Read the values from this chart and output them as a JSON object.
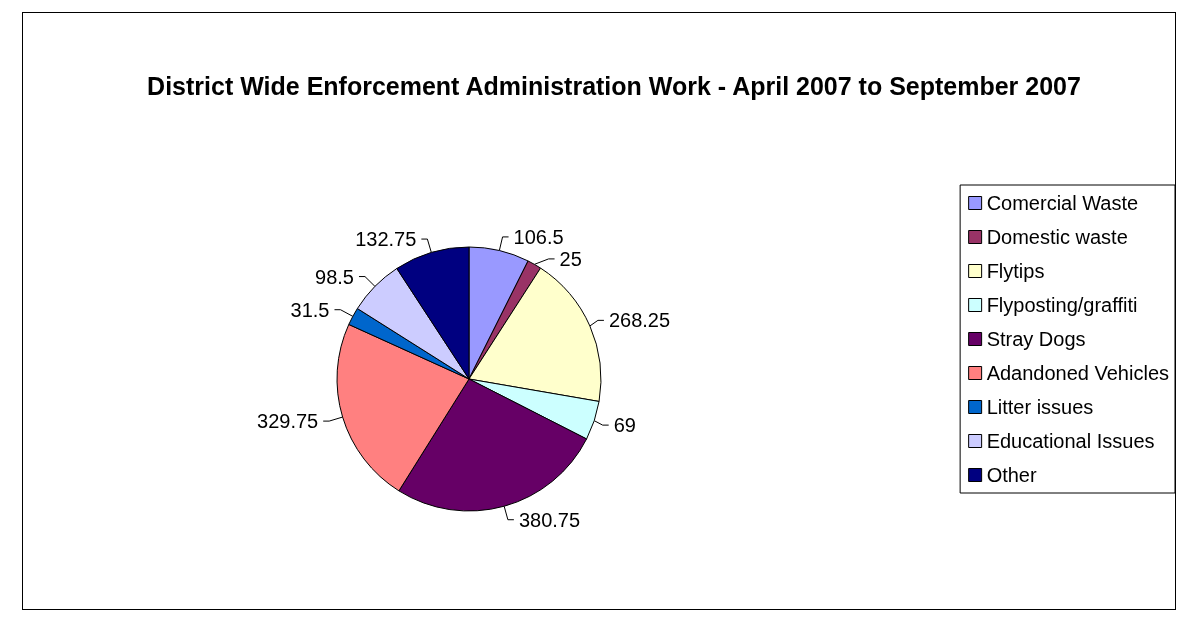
{
  "chart_data": {
    "type": "pie",
    "title": "District Wide Enforcement Administration Work - April 2007 to September 2007",
    "categories": [
      "Comercial Waste",
      "Domestic waste",
      "Flytips",
      "Flyposting/graffiti",
      "Stray Dogs",
      "Adandoned Vehicles",
      "Litter issues",
      "Educational Issues",
      "Other"
    ],
    "values": [
      106.5,
      25,
      268.25,
      69,
      380.75,
      329.75,
      31.5,
      98.5,
      132.75
    ],
    "colors": [
      "#9999ff",
      "#993366",
      "#ffffcc",
      "#ccffff",
      "#660066",
      "#ff8080",
      "#0066cc",
      "#ccccff",
      "#000080"
    ],
    "data_labels": true,
    "legend": "right"
  }
}
